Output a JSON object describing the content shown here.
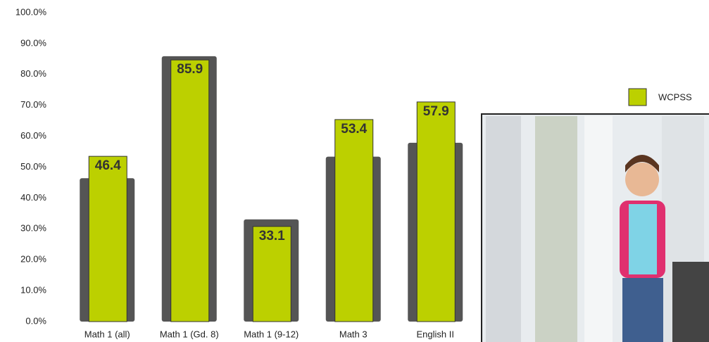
{
  "chart_data": {
    "type": "bar",
    "categories": [
      "Math 1 (all)",
      "Math 1 (Gd. 8)",
      "Math 1 (9-12)",
      "Math 3",
      "English II"
    ],
    "series": [
      {
        "color": "#555555",
        "values": [
          46.4,
          85.9,
          33.1,
          53.4,
          57.9
        ]
      },
      {
        "name": "WCPSS",
        "color": "#bcd000",
        "values": [
          53.5,
          84.7,
          30.8,
          65.4,
          71.1
        ]
      }
    ],
    "ylim": [
      0,
      100
    ],
    "yticks": [
      {
        "value": 0,
        "label": "0.0%"
      },
      {
        "value": 10,
        "label": "10.0%"
      },
      {
        "value": 20,
        "label": "20.0%"
      },
      {
        "value": 30,
        "label": "30.0%"
      },
      {
        "value": 40,
        "label": "40.0%"
      },
      {
        "value": 50,
        "label": "50.0%"
      },
      {
        "value": 60,
        "label": "60.0%"
      },
      {
        "value": 70,
        "label": "70.0%"
      },
      {
        "value": 80,
        "label": "80.0%"
      },
      {
        "value": 90,
        "label": "90.0%"
      },
      {
        "value": 100,
        "label": "100.0%"
      }
    ],
    "grid": false
  }
}
